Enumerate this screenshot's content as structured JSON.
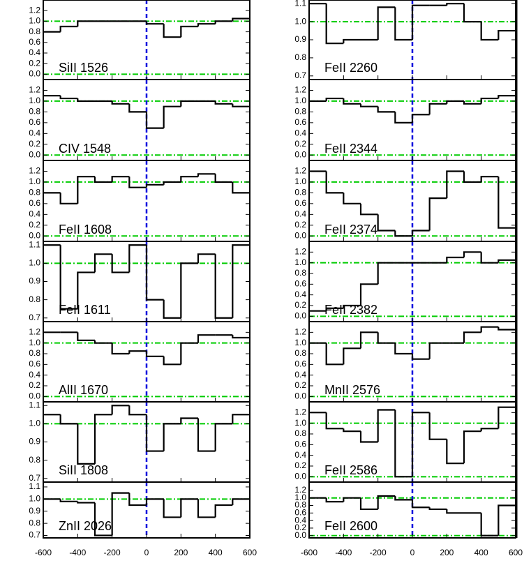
{
  "chart_data": [
    {
      "type": "step",
      "title": "SiII 1526",
      "xlim": [
        -600,
        600
      ],
      "xticks": [
        -600,
        -400,
        -200,
        0,
        200,
        400,
        600
      ],
      "ylim": [
        -0.1,
        1.4
      ],
      "yticks": [
        {
          "value": 0,
          "label": "0.0"
        },
        0.2,
        0.4,
        0.6,
        0.8,
        {
          "value": 1,
          "label": "1.0"
        },
        1.2
      ],
      "x": [
        -600,
        -500,
        -400,
        -300,
        -200,
        -100,
        0,
        100,
        200,
        300,
        400,
        500
      ],
      "values": [
        0.8,
        0.9,
        1.0,
        1.0,
        1.0,
        1.0,
        0.95,
        0.7,
        0.9,
        0.95,
        1.0,
        1.05
      ],
      "hlines": [
        0,
        1
      ],
      "vline": 0,
      "color": "#000000",
      "ref_color": "#00cc00",
      "vline_color": "#0000dd"
    },
    {
      "type": "step",
      "title": "CIV 1548",
      "xlim": [
        -600,
        600
      ],
      "xticks": [
        -600,
        -400,
        -200,
        0,
        200,
        400,
        600
      ],
      "ylim": [
        -0.1,
        1.4
      ],
      "yticks": [
        {
          "value": 0,
          "label": "0.0"
        },
        0.2,
        0.4,
        0.6,
        0.8,
        {
          "value": 1,
          "label": "1.0"
        },
        1.2
      ],
      "x": [
        -600,
        -500,
        -400,
        -300,
        -200,
        -100,
        0,
        100,
        200,
        300,
        400,
        500
      ],
      "values": [
        1.1,
        1.05,
        1.0,
        1.0,
        0.95,
        0.8,
        0.5,
        0.9,
        1.0,
        1.0,
        0.95,
        0.9
      ],
      "hlines": [
        0,
        1
      ],
      "vline": 0,
      "color": "#000000",
      "ref_color": "#00cc00",
      "vline_color": "#0000dd"
    },
    {
      "type": "step",
      "title": "FeII 1608",
      "xlim": [
        -600,
        600
      ],
      "xticks": [
        -600,
        -400,
        -200,
        0,
        200,
        400,
        600
      ],
      "ylim": [
        -0.1,
        1.4
      ],
      "yticks": [
        {
          "value": 0,
          "label": "0.0"
        },
        0.2,
        0.4,
        0.6,
        0.8,
        {
          "value": 1,
          "label": "1.0"
        },
        1.2
      ],
      "x": [
        -600,
        -500,
        -400,
        -300,
        -200,
        -100,
        0,
        100,
        200,
        300,
        400,
        500
      ],
      "values": [
        0.8,
        0.6,
        1.1,
        1.0,
        1.1,
        0.9,
        0.95,
        1.0,
        1.1,
        1.15,
        1.0,
        0.8
      ],
      "hlines": [
        0,
        1
      ],
      "vline": 0,
      "color": "#000000",
      "ref_color": "#00cc00",
      "vline_color": "#0000dd"
    },
    {
      "type": "step",
      "title": "FeII 1611",
      "xlim": [
        -600,
        600
      ],
      "xticks": [
        -600,
        -400,
        -200,
        0,
        200,
        400,
        600
      ],
      "ylim": [
        0.68,
        1.12
      ],
      "yticks": [
        0.7,
        0.8,
        0.9,
        {
          "value": 1,
          "label": "1.0"
        },
        1.1
      ],
      "x": [
        -600,
        -500,
        -400,
        -300,
        -200,
        -100,
        0,
        100,
        200,
        300,
        400,
        500
      ],
      "values": [
        1.1,
        0.75,
        0.95,
        1.05,
        0.95,
        1.1,
        0.8,
        0.7,
        1.0,
        1.05,
        0.7,
        1.1
      ],
      "hlines": [
        1
      ],
      "vline": 0,
      "color": "#000000",
      "ref_color": "#00cc00",
      "vline_color": "#0000dd"
    },
    {
      "type": "step",
      "title": "AlII 1670",
      "xlim": [
        -600,
        600
      ],
      "xticks": [
        -600,
        -400,
        -200,
        0,
        200,
        400,
        600
      ],
      "ylim": [
        -0.1,
        1.4
      ],
      "yticks": [
        {
          "value": 0,
          "label": "0.0"
        },
        0.2,
        0.4,
        0.6,
        0.8,
        {
          "value": 1,
          "label": "1.0"
        },
        1.2
      ],
      "x": [
        -600,
        -500,
        -400,
        -300,
        -200,
        -100,
        0,
        100,
        200,
        300,
        400,
        500
      ],
      "values": [
        1.2,
        1.2,
        1.05,
        1.0,
        0.8,
        0.85,
        0.75,
        0.6,
        1.0,
        1.15,
        1.15,
        1.1
      ],
      "hlines": [
        0,
        1
      ],
      "vline": 0,
      "color": "#000000",
      "ref_color": "#00cc00",
      "vline_color": "#0000dd"
    },
    {
      "type": "step",
      "title": "SiII 1808",
      "xlim": [
        -600,
        600
      ],
      "xticks": [
        -600,
        -400,
        -200,
        0,
        200,
        400,
        600
      ],
      "ylim": [
        0.68,
        1.12
      ],
      "yticks": [
        0.7,
        0.8,
        0.9,
        {
          "value": 1,
          "label": "1.0"
        },
        1.1
      ],
      "x": [
        -600,
        -500,
        -400,
        -300,
        -200,
        -100,
        0,
        100,
        200,
        300,
        400,
        500
      ],
      "values": [
        1.05,
        1.0,
        0.78,
        1.05,
        1.1,
        1.05,
        0.85,
        1.0,
        1.03,
        0.85,
        1.0,
        1.05
      ],
      "hlines": [
        1
      ],
      "vline": 0,
      "color": "#000000",
      "ref_color": "#00cc00",
      "vline_color": "#0000dd"
    },
    {
      "type": "step",
      "title": "ZnII 2026",
      "xlim": [
        -600,
        600
      ],
      "xticks": [
        -600,
        -400,
        -200,
        0,
        200,
        400,
        600
      ],
      "ylim": [
        0.68,
        1.14
      ],
      "yticks": [
        0.7,
        0.8,
        0.9,
        {
          "value": 1,
          "label": "1.0"
        },
        1.1
      ],
      "x": [
        -600,
        -500,
        -400,
        -300,
        -200,
        -100,
        0,
        100,
        200,
        300,
        400,
        500
      ],
      "values": [
        1.0,
        0.98,
        0.97,
        0.7,
        1.05,
        0.95,
        1.0,
        0.85,
        1.0,
        0.85,
        0.95,
        1.0
      ],
      "hlines": [
        1
      ],
      "vline": 0,
      "color": "#000000",
      "ref_color": "#00cc00",
      "vline_color": "#0000dd"
    },
    {
      "type": "step",
      "title": "FeII 2260",
      "xlim": [
        -600,
        600
      ],
      "xticks": [
        -600,
        -400,
        -200,
        0,
        200,
        400,
        600
      ],
      "ylim": [
        0.68,
        1.12
      ],
      "yticks": [
        0.7,
        0.8,
        0.9,
        {
          "value": 1,
          "label": "1.0"
        },
        1.1
      ],
      "x": [
        -600,
        -500,
        -400,
        -300,
        -200,
        -100,
        0,
        100,
        200,
        300,
        400,
        500
      ],
      "values": [
        1.1,
        0.88,
        0.9,
        0.9,
        1.08,
        0.9,
        1.09,
        1.09,
        1.1,
        1.0,
        0.9,
        0.95
      ],
      "hlines": [
        1
      ],
      "vline": 0,
      "color": "#000000",
      "ref_color": "#00cc00",
      "vline_color": "#0000dd"
    },
    {
      "type": "step",
      "title": "FeII 2344",
      "xlim": [
        -600,
        600
      ],
      "xticks": [
        -600,
        -400,
        -200,
        0,
        200,
        400,
        600
      ],
      "ylim": [
        -0.1,
        1.4
      ],
      "yticks": [
        {
          "value": 0,
          "label": "0.0"
        },
        0.2,
        0.4,
        0.6,
        0.8,
        {
          "value": 1,
          "label": "1.0"
        },
        1.2
      ],
      "x": [
        -600,
        -500,
        -400,
        -300,
        -200,
        -100,
        0,
        100,
        200,
        300,
        400,
        500
      ],
      "values": [
        1.0,
        1.05,
        0.95,
        0.9,
        0.8,
        0.6,
        0.75,
        0.95,
        1.0,
        0.95,
        1.05,
        1.1
      ],
      "hlines": [
        0,
        1
      ],
      "vline": 0,
      "color": "#000000",
      "ref_color": "#00cc00",
      "vline_color": "#0000dd"
    },
    {
      "type": "step",
      "title": "FeII 2374",
      "xlim": [
        -600,
        600
      ],
      "xticks": [
        -600,
        -400,
        -200,
        0,
        200,
        400,
        600
      ],
      "ylim": [
        -0.1,
        1.4
      ],
      "yticks": [
        {
          "value": 0,
          "label": "0.0"
        },
        0.2,
        0.4,
        0.6,
        0.8,
        {
          "value": 1,
          "label": "1.0"
        },
        1.2
      ],
      "x": [
        -600,
        -500,
        -400,
        -300,
        -200,
        -100,
        0,
        100,
        200,
        300,
        400,
        500
      ],
      "values": [
        1.2,
        0.8,
        0.6,
        0.4,
        0.1,
        0.0,
        0.1,
        0.7,
        1.2,
        1.0,
        1.1,
        0.15
      ],
      "hlines": [
        0,
        1
      ],
      "vline": 0,
      "color": "#000000",
      "ref_color": "#00cc00",
      "vline_color": "#0000dd"
    },
    {
      "type": "step",
      "title": "FeII 2382",
      "xlim": [
        -600,
        600
      ],
      "xticks": [
        -600,
        -400,
        -200,
        0,
        200,
        400,
        600
      ],
      "ylim": [
        -0.1,
        1.4
      ],
      "yticks": [
        {
          "value": 0,
          "label": "0.0"
        },
        0.2,
        0.4,
        0.6,
        0.8,
        {
          "value": 1,
          "label": "1.0"
        },
        1.2
      ],
      "x": [
        -600,
        -500,
        -400,
        -300,
        -200,
        -100,
        0,
        100,
        200,
        300,
        400,
        500
      ],
      "values": [
        0.1,
        0.15,
        0.2,
        0.6,
        1.0,
        1.0,
        1.0,
        1.0,
        1.1,
        1.2,
        1.0,
        1.05
      ],
      "hlines": [
        0,
        1
      ],
      "vline": 0,
      "color": "#000000",
      "ref_color": "#00cc00",
      "vline_color": "#0000dd"
    },
    {
      "type": "step",
      "title": "MnII 2576",
      "xlim": [
        -600,
        600
      ],
      "xticks": [
        -600,
        -400,
        -200,
        0,
        200,
        400,
        600
      ],
      "ylim": [
        -0.1,
        1.4
      ],
      "yticks": [
        {
          "value": 0,
          "label": "0.0"
        },
        0.2,
        0.4,
        0.6,
        0.8,
        {
          "value": 1,
          "label": "1.0"
        },
        1.2
      ],
      "x": [
        -600,
        -500,
        -400,
        -300,
        -200,
        -100,
        0,
        100,
        200,
        300,
        400,
        500
      ],
      "values": [
        1.0,
        0.6,
        0.9,
        1.2,
        1.0,
        0.8,
        0.7,
        1.0,
        1.0,
        1.2,
        1.3,
        1.25
      ],
      "hlines": [
        0,
        1
      ],
      "vline": 0,
      "color": "#000000",
      "ref_color": "#00cc00",
      "vline_color": "#0000dd"
    },
    {
      "type": "step",
      "title": "FeII 2586",
      "xlim": [
        -600,
        600
      ],
      "xticks": [
        -600,
        -400,
        -200,
        0,
        200,
        400,
        600
      ],
      "ylim": [
        -0.1,
        1.4
      ],
      "yticks": [
        {
          "value": 0,
          "label": "0.0"
        },
        0.2,
        0.4,
        0.6,
        0.8,
        {
          "value": 1,
          "label": "1.0"
        },
        1.2
      ],
      "x": [
        -600,
        -500,
        -400,
        -300,
        -200,
        -100,
        0,
        100,
        200,
        300,
        400,
        500
      ],
      "values": [
        1.2,
        0.9,
        0.85,
        0.65,
        1.25,
        0.0,
        1.2,
        0.7,
        0.25,
        0.85,
        0.9,
        1.3
      ],
      "hlines": [
        0,
        1
      ],
      "vline": 0,
      "color": "#000000",
      "ref_color": "#00cc00",
      "vline_color": "#0000dd"
    },
    {
      "type": "step",
      "title": "FeII 2600",
      "xlim": [
        -600,
        600
      ],
      "xticks": [
        -600,
        -400,
        -200,
        0,
        200,
        400,
        600
      ],
      "ylim": [
        -0.06,
        1.42
      ],
      "yticks": [
        {
          "value": 0,
          "label": "0.0"
        },
        0.2,
        0.4,
        0.6,
        0.8,
        {
          "value": 1,
          "label": "1.0"
        },
        1.2
      ],
      "x": [
        -600,
        -500,
        -400,
        -300,
        -200,
        -100,
        0,
        100,
        200,
        300,
        400,
        500
      ],
      "values": [
        1.0,
        0.9,
        1.0,
        0.7,
        1.05,
        0.95,
        0.75,
        0.7,
        0.6,
        0.6,
        0.0,
        0.8
      ],
      "hlines": [
        0,
        1
      ],
      "vline": 0,
      "color": "#000000",
      "ref_color": "#00cc00",
      "vline_color": "#0000dd"
    }
  ]
}
